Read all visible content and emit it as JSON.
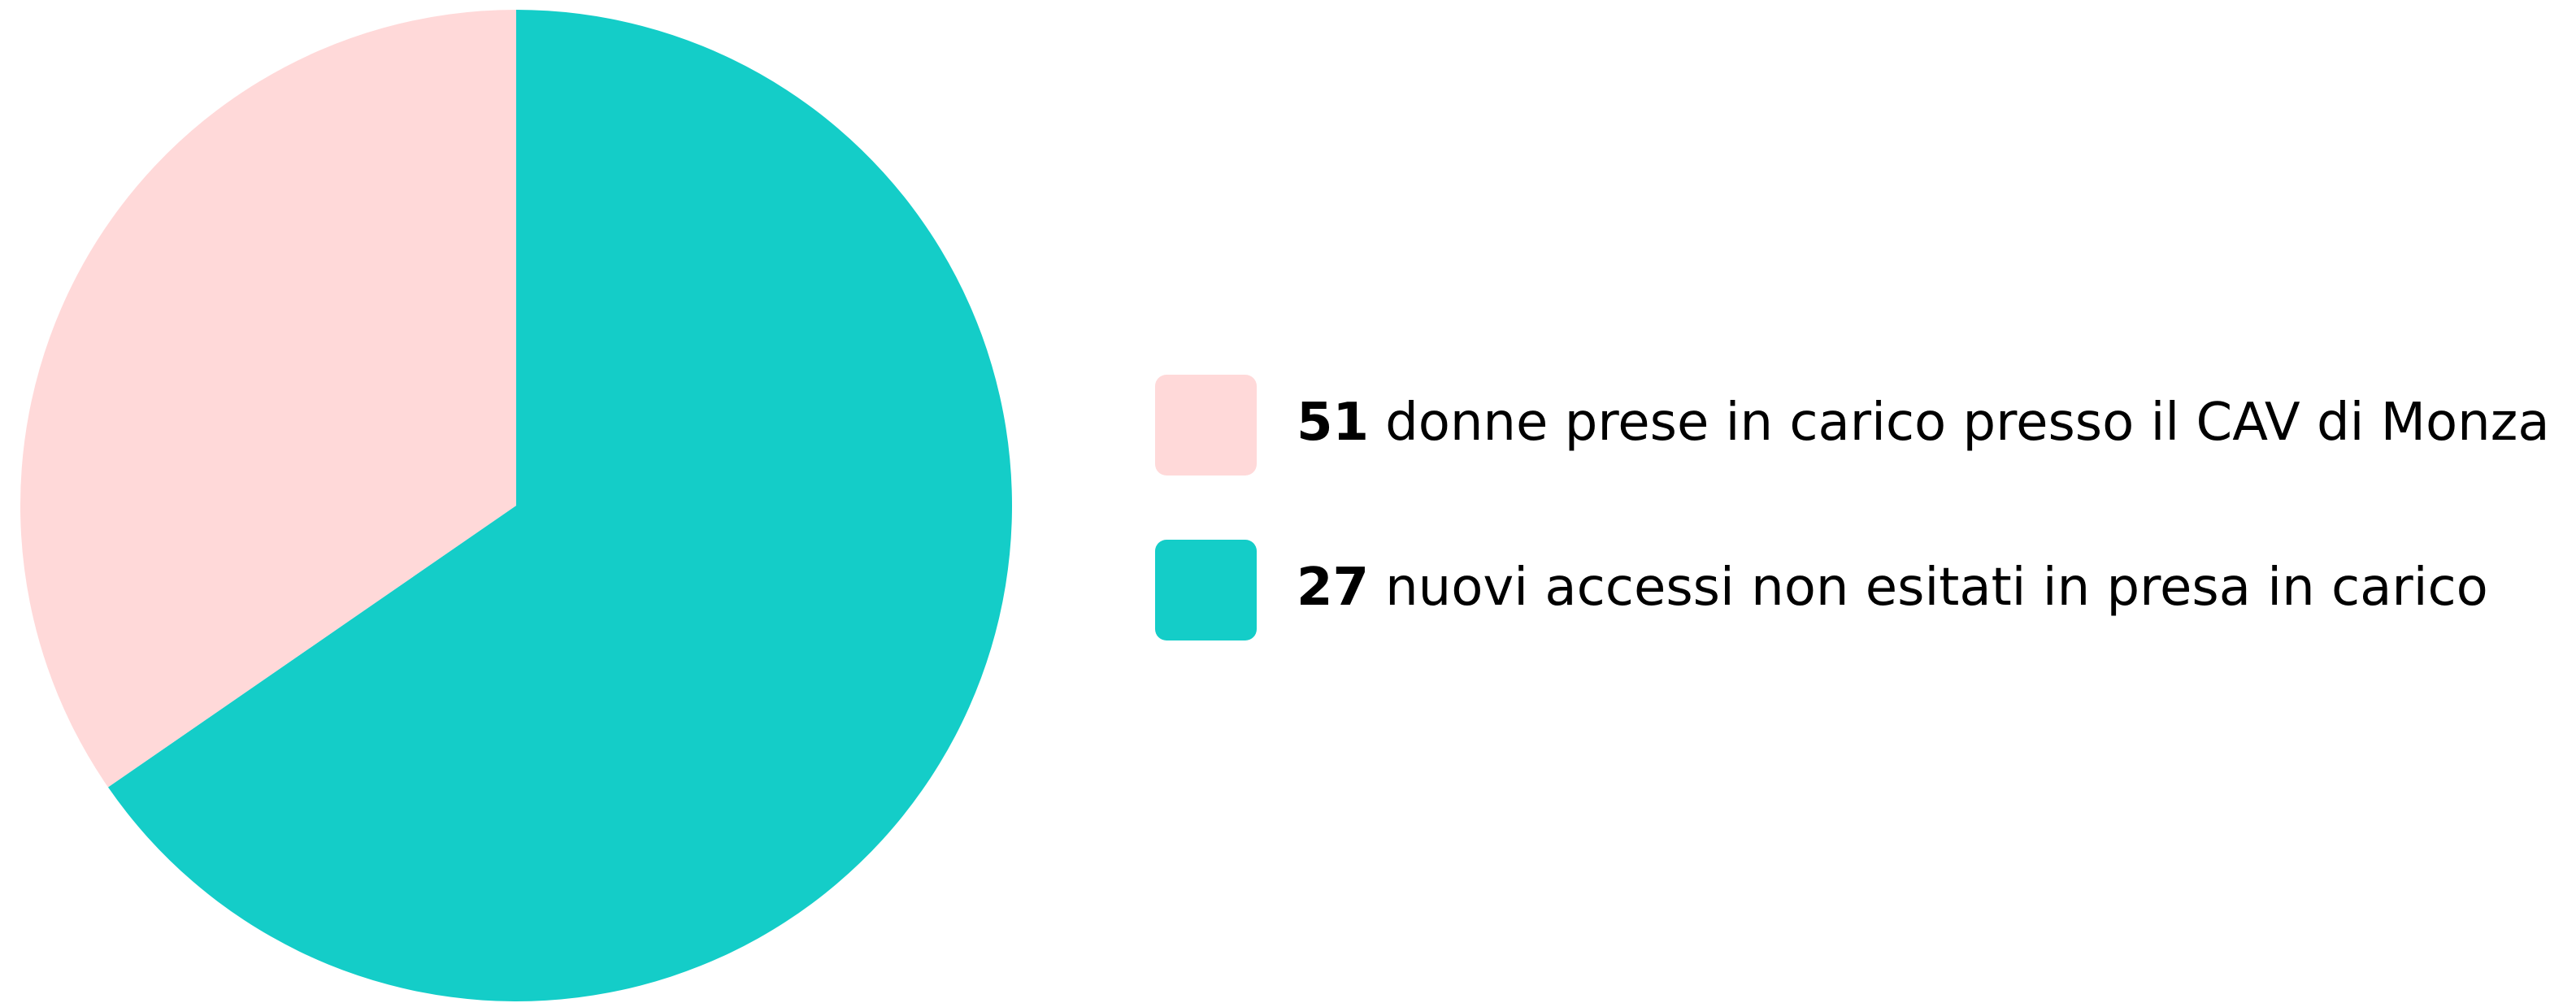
{
  "chart_data": {
    "type": "pie",
    "categories": [
      "donne prese in carico presso il CAV di Monza",
      "nuovi accessi non esitati in presa in carico"
    ],
    "values": [
      51,
      27
    ],
    "colors": [
      "#14cdc8",
      "#ffd9d9"
    ],
    "legend_colors": [
      "#ffd9d9",
      "#14cdc8"
    ],
    "legend": "right"
  }
}
